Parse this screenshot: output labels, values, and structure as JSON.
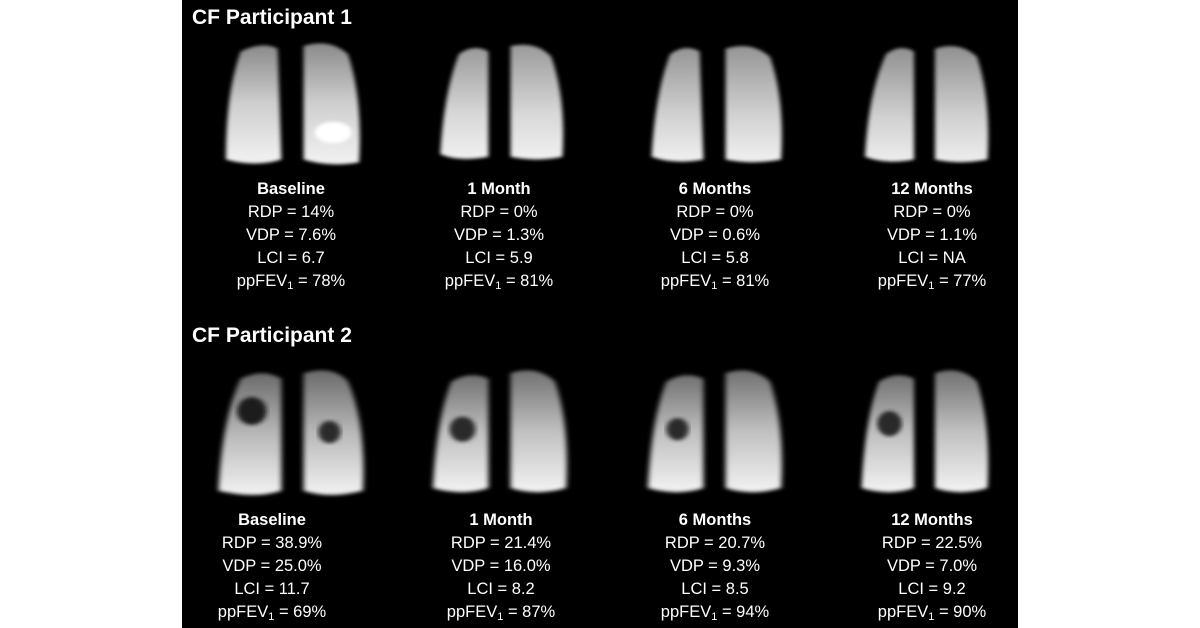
{
  "participants": [
    {
      "title": "CF Participant 1",
      "panels": [
        {
          "label": "Baseline",
          "rdp": "RDP = 14%",
          "vdp": "VDP = 7.6%",
          "lci": "LCI = 6.7",
          "fev_prefix": "ppFEV",
          "fev_sub": "1",
          "fev_suffix": " = 78%"
        },
        {
          "label": "1 Month",
          "rdp": "RDP = 0%",
          "vdp": "VDP = 1.3%",
          "lci": "LCI = 5.9",
          "fev_prefix": "ppFEV",
          "fev_sub": "1",
          "fev_suffix": " = 81%"
        },
        {
          "label": "6 Months",
          "rdp": "RDP = 0%",
          "vdp": "VDP = 0.6%",
          "lci": "LCI = 5.8",
          "fev_prefix": "ppFEV",
          "fev_sub": "1",
          "fev_suffix": " = 81%"
        },
        {
          "label": "12 Months",
          "rdp": "RDP = 0%",
          "vdp": "VDP = 1.1%",
          "lci": "LCI = NA",
          "fev_prefix": "ppFEV",
          "fev_sub": "1",
          "fev_suffix": " = 77%"
        }
      ]
    },
    {
      "title": "CF Participant 2",
      "panels": [
        {
          "label": "Baseline",
          "rdp": "RDP = 38.9%",
          "vdp": "VDP = 25.0%",
          "lci": "LCI = 11.7",
          "fev_prefix": "ppFEV",
          "fev_sub": "1",
          "fev_suffix": " = 69%"
        },
        {
          "label": "1 Month",
          "rdp": "RDP = 21.4%",
          "vdp": "VDP = 16.0%",
          "lci": "LCI = 8.2",
          "fev_prefix": "ppFEV",
          "fev_sub": "1",
          "fev_suffix": " = 87%"
        },
        {
          "label": "6 Months",
          "rdp": "RDP = 20.7%",
          "vdp": "VDP = 9.3%",
          "lci": "LCI = 8.5",
          "fev_prefix": "ppFEV",
          "fev_sub": "1",
          "fev_suffix": " = 94%"
        },
        {
          "label": "12 Months",
          "rdp": "RDP = 22.5%",
          "vdp": "VDP = 7.0%",
          "lci": "LCI = 9.2",
          "fev_prefix": "ppFEV",
          "fev_sub": "1",
          "fev_suffix": " = 90%"
        }
      ]
    }
  ]
}
